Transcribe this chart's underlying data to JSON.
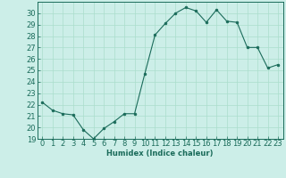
{
  "x": [
    0,
    1,
    2,
    3,
    4,
    5,
    6,
    7,
    8,
    9,
    10,
    11,
    12,
    13,
    14,
    15,
    16,
    17,
    18,
    19,
    20,
    21,
    22,
    23
  ],
  "y": [
    22.2,
    21.5,
    21.2,
    21.1,
    19.8,
    19.0,
    19.9,
    20.5,
    21.2,
    21.2,
    24.7,
    28.1,
    29.1,
    30.0,
    30.5,
    30.2,
    29.2,
    30.3,
    29.3,
    29.2,
    27.0,
    27.0,
    25.2,
    25.5
  ],
  "line_color": "#1a6b5a",
  "marker": "o",
  "marker_size": 2,
  "bg_color": "#cceee8",
  "grid_color": "#aaddcc",
  "xlabel": "Humidex (Indice chaleur)",
  "ylim": [
    19,
    31
  ],
  "xlim": [
    -0.5,
    23.5
  ],
  "yticks": [
    19,
    20,
    21,
    22,
    23,
    24,
    25,
    26,
    27,
    28,
    29,
    30
  ],
  "xticks": [
    0,
    1,
    2,
    3,
    4,
    5,
    6,
    7,
    8,
    9,
    10,
    11,
    12,
    13,
    14,
    15,
    16,
    17,
    18,
    19,
    20,
    21,
    22,
    23
  ],
  "label_fontsize": 6,
  "tick_fontsize": 6
}
